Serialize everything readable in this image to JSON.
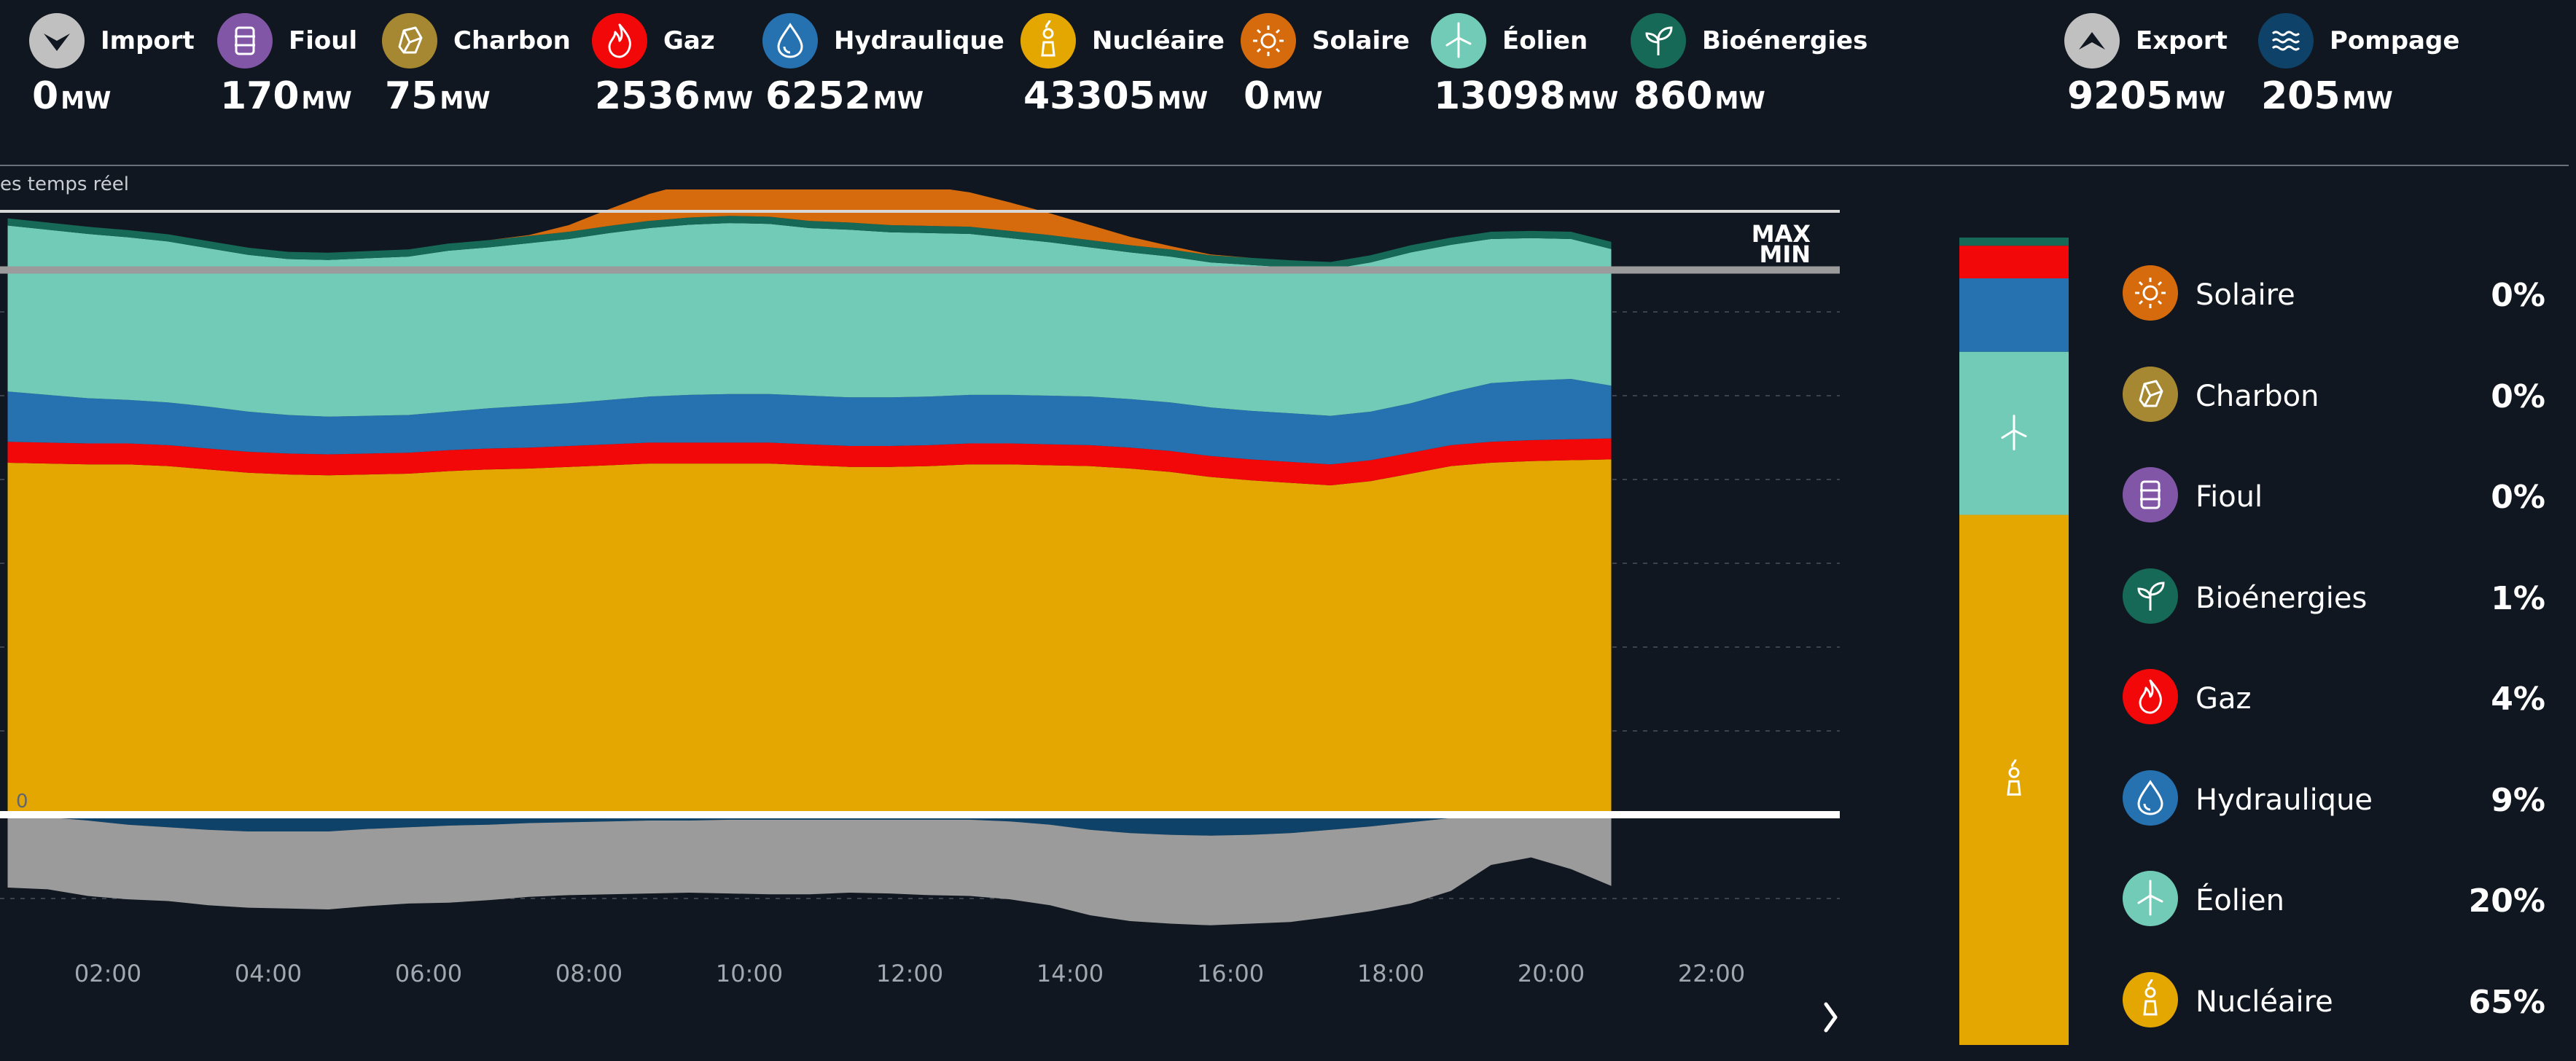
{
  "header": {
    "sources": [
      {
        "key": "import",
        "name": "Import",
        "value": "0",
        "unit": "MW",
        "color": "#c0c0c0",
        "icon": "chevron-down-icon"
      },
      {
        "key": "fioul",
        "name": "Fioul",
        "value": "170",
        "unit": "MW",
        "color": "#8156a7",
        "icon": "barrel-icon"
      },
      {
        "key": "charbon",
        "name": "Charbon",
        "value": "75",
        "unit": "MW",
        "color": "#a68832",
        "icon": "coal-icon"
      },
      {
        "key": "gaz",
        "name": "Gaz",
        "value": "2536",
        "unit": "MW",
        "color": "#f20809",
        "icon": "flame-icon"
      },
      {
        "key": "hydraulique",
        "name": "Hydraulique",
        "value": "6252",
        "unit": "MW",
        "color": "#2672b0",
        "icon": "water-drop-icon"
      },
      {
        "key": "nucleaire",
        "name": "Nucléaire",
        "value": "43305",
        "unit": "MW",
        "color": "#e4a701",
        "icon": "nuclear-plant-icon"
      },
      {
        "key": "solaire",
        "name": "Solaire",
        "value": "0",
        "unit": "MW",
        "color": "#d66b0d",
        "icon": "sun-icon"
      },
      {
        "key": "eolien",
        "name": "Éolien",
        "value": "13098",
        "unit": "MW",
        "color": "#72cbb7",
        "icon": "wind-turbine-icon"
      },
      {
        "key": "bioenergies",
        "name": "Bioénergies",
        "value": "860",
        "unit": "MW",
        "color": "#156956",
        "icon": "sprout-icon"
      },
      {
        "key": "export",
        "name": "Export",
        "value": "9205",
        "unit": "MW",
        "color": "#c0c0c0",
        "icon": "chevron-up-icon"
      },
      {
        "key": "pompage",
        "name": "Pompage",
        "value": "205",
        "unit": "MW",
        "color": "#0e4269",
        "icon": "waves-icon"
      }
    ]
  },
  "chart_label": "es temps réel",
  "max_label": "MAX",
  "min_label": "MIN",
  "chart_data": {
    "type": "area",
    "stacked": true,
    "x_ticks": [
      "02:00",
      "04:00",
      "06:00",
      "08:00",
      "10:00",
      "12:00",
      "14:00",
      "16:00",
      "18:00",
      "20:00",
      "22:00"
    ],
    "y_zero_label": "0",
    "x": [
      "00:45",
      "01:15",
      "01:45",
      "02:15",
      "02:45",
      "03:15",
      "03:45",
      "04:15",
      "04:45",
      "05:15",
      "05:45",
      "06:15",
      "06:45",
      "07:15",
      "07:45",
      "08:15",
      "08:45",
      "09:15",
      "09:45",
      "10:15",
      "10:45",
      "11:15",
      "11:45",
      "12:15",
      "12:45",
      "13:15",
      "13:45",
      "14:15",
      "14:45",
      "15:15",
      "15:45",
      "16:15",
      "16:45",
      "17:15",
      "17:45",
      "18:15",
      "18:45",
      "19:15",
      "19:45",
      "20:15",
      "20:45"
    ],
    "series": [
      {
        "name": "Nucléaire",
        "color": "#e4a701",
        "values": [
          42000,
          41900,
          41800,
          41800,
          41600,
          41200,
          40800,
          40600,
          40500,
          40600,
          40700,
          41000,
          41200,
          41300,
          41500,
          41700,
          41900,
          41900,
          41900,
          41900,
          41700,
          41500,
          41500,
          41600,
          41800,
          41800,
          41700,
          41600,
          41300,
          40900,
          40300,
          39900,
          39600,
          39300,
          39800,
          40700,
          41600,
          42000,
          42200,
          42300,
          42400
        ]
      },
      {
        "name": "Gaz",
        "color": "#f20809",
        "values": [
          2500,
          2500,
          2500,
          2500,
          2500,
          2500,
          2500,
          2500,
          2500,
          2500,
          2500,
          2500,
          2500,
          2500,
          2500,
          2500,
          2500,
          2500,
          2500,
          2500,
          2500,
          2500,
          2500,
          2500,
          2500,
          2500,
          2500,
          2500,
          2500,
          2500,
          2500,
          2500,
          2500,
          2500,
          2500,
          2500,
          2500,
          2500,
          2500,
          2500,
          2500
        ]
      },
      {
        "name": "Hydraulique",
        "color": "#2672b0",
        "values": [
          6000,
          5700,
          5400,
          5200,
          5100,
          5000,
          4800,
          4600,
          4500,
          4500,
          4500,
          4600,
          4800,
          5000,
          5100,
          5300,
          5500,
          5700,
          5800,
          5800,
          5800,
          5800,
          5800,
          5800,
          5800,
          5800,
          5800,
          5800,
          5800,
          5800,
          5800,
          5800,
          5800,
          5800,
          5800,
          5900,
          6300,
          7000,
          7100,
          7200,
          6300
        ]
      },
      {
        "name": "Éolien",
        "color": "#72cbb7",
        "values": [
          19800,
          19700,
          19600,
          19400,
          19200,
          18900,
          18700,
          18600,
          18700,
          18800,
          18900,
          19200,
          19200,
          19400,
          19600,
          19900,
          20100,
          20300,
          20400,
          20300,
          20000,
          20000,
          19700,
          19500,
          19200,
          18700,
          18300,
          17800,
          17500,
          17400,
          17300,
          17400,
          17400,
          17500,
          17800,
          18000,
          17600,
          17200,
          17000,
          16700,
          16300
        ]
      },
      {
        "name": "Bioénergies",
        "color": "#156956",
        "values": [
          860,
          860,
          860,
          860,
          860,
          860,
          860,
          860,
          860,
          860,
          860,
          860,
          860,
          860,
          860,
          860,
          860,
          860,
          860,
          860,
          860,
          860,
          860,
          860,
          860,
          860,
          860,
          860,
          860,
          860,
          860,
          860,
          860,
          860,
          860,
          860,
          860,
          860,
          860,
          860,
          860
        ]
      },
      {
        "name": "Solaire",
        "color": "#d66b0d",
        "values": [
          0,
          0,
          0,
          0,
          0,
          0,
          0,
          0,
          0,
          0,
          0,
          0,
          0,
          100,
          800,
          2000,
          3200,
          4100,
          4700,
          5100,
          5300,
          5300,
          5100,
          4700,
          4100,
          3400,
          2600,
          1800,
          1000,
          400,
          100,
          0,
          0,
          0,
          0,
          0,
          0,
          0,
          0,
          0,
          0
        ]
      }
    ],
    "negative_series": [
      {
        "name": "Pompage",
        "color": "#0e4269",
        "values": [
          200,
          300,
          700,
          1200,
          1500,
          1800,
          2000,
          2000,
          2000,
          1700,
          1500,
          1300,
          1200,
          1000,
          900,
          800,
          700,
          700,
          600,
          600,
          600,
          600,
          600,
          600,
          600,
          800,
          1200,
          1800,
          2200,
          2400,
          2500,
          2400,
          2200,
          1800,
          1400,
          900,
          400,
          200,
          200,
          200,
          200
        ]
      },
      {
        "name": "Export",
        "color": "#9b9b9b",
        "values": [
          8500,
          8600,
          9000,
          8900,
          8800,
          9000,
          9100,
          9200,
          9300,
          9200,
          9100,
          9200,
          9000,
          8800,
          8700,
          8700,
          8700,
          8600,
          8800,
          8900,
          8900,
          8700,
          8800,
          9000,
          9100,
          9300,
          9600,
          10200,
          10500,
          10600,
          10700,
          10600,
          10600,
          10400,
          10100,
          9700,
          8700,
          5800,
          4900,
          6300,
          8300
        ]
      }
    ],
    "reference_lines": [
      {
        "name": "MAX",
        "value": 72000
      },
      {
        "name": "MIN",
        "value": 65000
      }
    ]
  },
  "mix": {
    "segments": [
      {
        "name": "Nucléaire",
        "percent": 65,
        "color": "#e4a701",
        "icon": "nuclear-plant-icon"
      },
      {
        "name": "Éolien",
        "percent": 20,
        "color": "#72cbb7",
        "icon": "wind-turbine-icon"
      },
      {
        "name": "Hydraulique",
        "percent": 9,
        "color": "#2672b0"
      },
      {
        "name": "Gaz",
        "percent": 4,
        "color": "#f20809"
      },
      {
        "name": "Bioénergies",
        "percent": 1,
        "color": "#156956"
      },
      {
        "name": "Fioul",
        "percent": 0,
        "color": "#8156a7"
      },
      {
        "name": "Charbon",
        "percent": 0,
        "color": "#a68832"
      },
      {
        "name": "Solaire",
        "percent": 0,
        "color": "#d66b0d"
      }
    ]
  },
  "legend": {
    "items": [
      {
        "name": "Solaire",
        "percent": "0%",
        "color": "#d66b0d",
        "icon": "sun-icon"
      },
      {
        "name": "Charbon",
        "percent": "0%",
        "color": "#a68832",
        "icon": "coal-icon"
      },
      {
        "name": "Fioul",
        "percent": "0%",
        "color": "#8156a7",
        "icon": "barrel-icon"
      },
      {
        "name": "Bioénergies",
        "percent": "1%",
        "color": "#156956",
        "icon": "sprout-icon"
      },
      {
        "name": "Gaz",
        "percent": "4%",
        "color": "#f20809",
        "icon": "flame-icon"
      },
      {
        "name": "Hydraulique",
        "percent": "9%",
        "color": "#2672b0",
        "icon": "water-drop-icon"
      },
      {
        "name": "Éolien",
        "percent": "20%",
        "color": "#72cbb7",
        "icon": "wind-turbine-icon"
      },
      {
        "name": "Nucléaire",
        "percent": "65%",
        "color": "#e4a701",
        "icon": "nuclear-plant-icon"
      }
    ]
  }
}
